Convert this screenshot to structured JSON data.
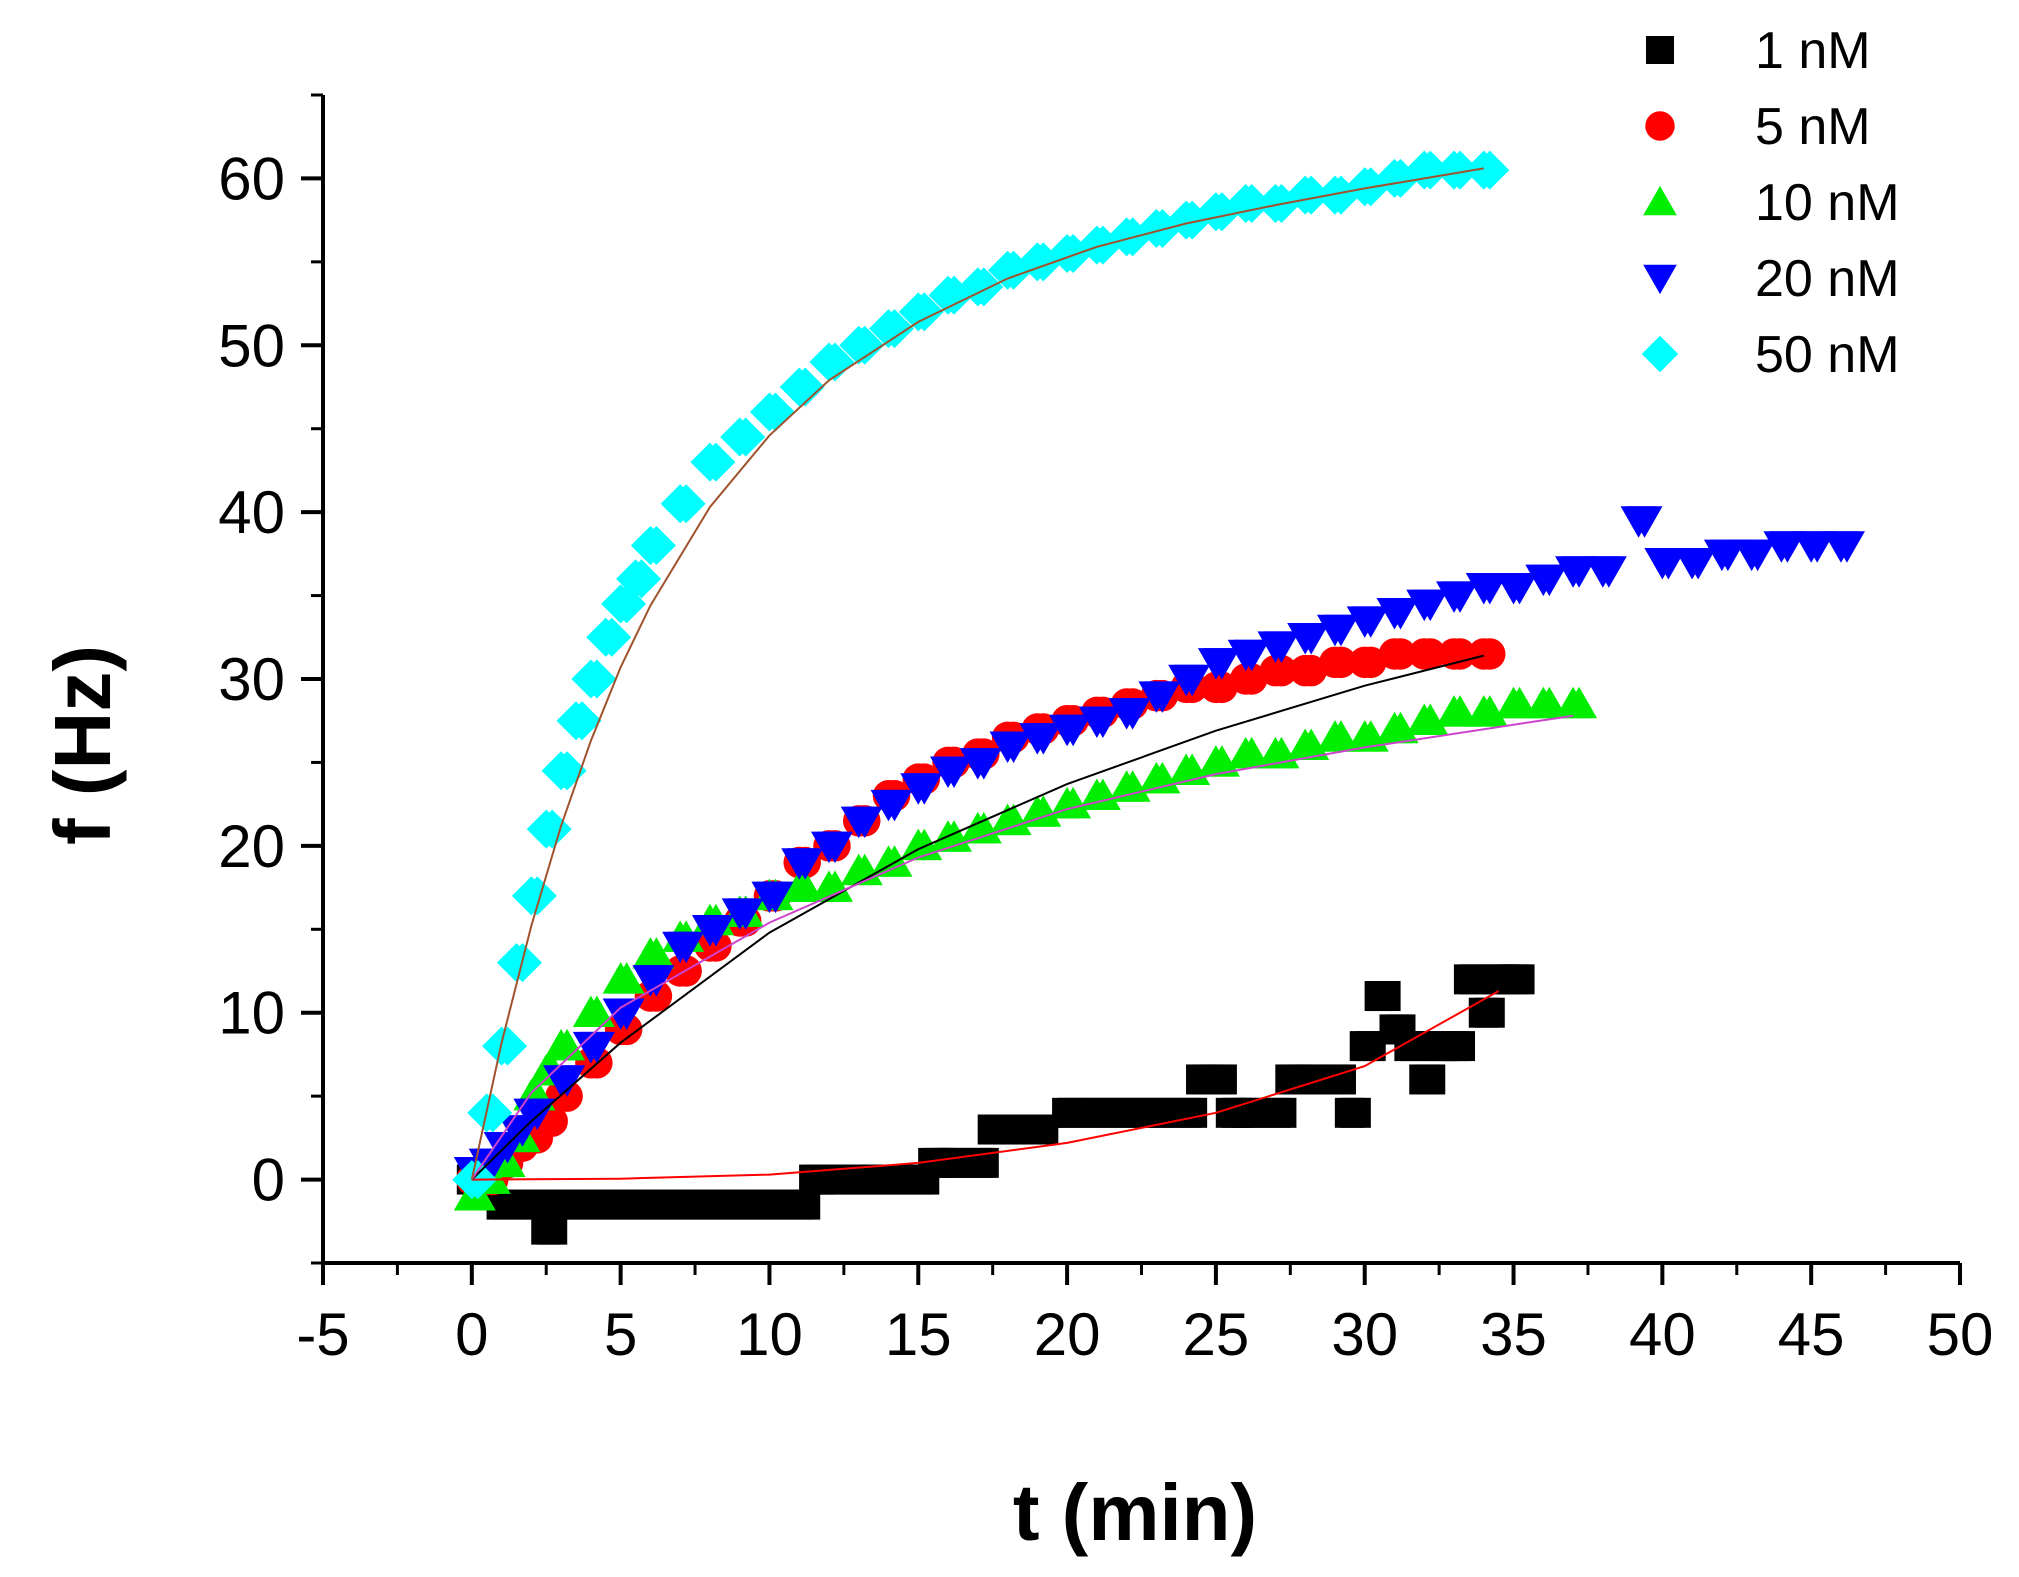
{
  "chart_data": {
    "type": "scatter",
    "title": "",
    "xlabel": "t (min)",
    "ylabel": "f (Hz)",
    "xlim": [
      -5,
      50
    ],
    "ylim": [
      -5,
      65
    ],
    "xticks": [
      -5,
      0,
      5,
      10,
      15,
      20,
      25,
      30,
      35,
      40,
      45,
      50
    ],
    "yticks": [
      0,
      10,
      20,
      30,
      40,
      50,
      60
    ],
    "legend_position": "top-right",
    "series": [
      {
        "name": "1 nM",
        "marker": "square",
        "color": "#000000",
        "fit_color": "#ff0000",
        "x": [
          0,
          1,
          2,
          2.5,
          3,
          4,
          5,
          6,
          7,
          8,
          9,
          10,
          11,
          11.5,
          12,
          13,
          14,
          15,
          15.5,
          16,
          17,
          17.5,
          18,
          19,
          20,
          21,
          22,
          23,
          24,
          24.5,
          25,
          25.5,
          26,
          27,
          27.5,
          28,
          29,
          29.5,
          30,
          30.5,
          31,
          31.5,
          32,
          32.5,
          33,
          33.5,
          34,
          34.5,
          35
        ],
        "y": [
          0,
          -1.5,
          -1.5,
          -3,
          -1.5,
          -1.5,
          -1.5,
          -1.5,
          -1.5,
          -1.5,
          -1.5,
          -1.5,
          -1.5,
          0,
          0,
          0,
          0,
          0,
          1,
          1,
          1,
          3,
          3,
          3,
          4,
          4,
          4,
          4,
          4,
          6,
          6,
          4,
          4,
          4,
          6,
          6,
          6,
          4,
          8,
          11,
          9,
          8,
          6,
          8,
          8,
          12,
          10,
          12,
          12
        ],
        "fit_x": [
          0,
          5,
          10,
          15,
          20,
          25,
          30,
          34.5
        ],
        "fit_y": [
          0,
          0.05,
          0.3,
          1.0,
          2.2,
          4.0,
          6.8,
          11.3
        ]
      },
      {
        "name": "5 nM",
        "marker": "circle",
        "color": "#ff0000",
        "fit_color": "#000000",
        "x": [
          0,
          0.5,
          1,
          1.5,
          2,
          2.5,
          3,
          4,
          5,
          6,
          7,
          8,
          9,
          10,
          11,
          12,
          13,
          14,
          15,
          16,
          17,
          18,
          19,
          20,
          21,
          22,
          23,
          24,
          25,
          26,
          27,
          28,
          29,
          30,
          31,
          32,
          33,
          34
        ],
        "y": [
          0,
          0,
          1,
          2,
          2.5,
          3.5,
          5,
          7,
          9,
          11,
          12.5,
          14,
          15.5,
          17,
          19,
          20,
          21.5,
          23,
          24,
          25,
          25.5,
          26.5,
          27,
          27.5,
          28,
          28.5,
          29,
          29.5,
          29.5,
          30,
          30.5,
          30.5,
          31,
          31,
          31.5,
          31.5,
          31.5,
          31.5
        ],
        "fit_x": [
          0,
          2,
          5,
          10,
          15,
          20,
          25,
          30,
          34
        ],
        "fit_y": [
          0,
          3.5,
          8.2,
          14.8,
          19.8,
          23.7,
          26.9,
          29.6,
          31.4
        ]
      },
      {
        "name": "10 nM",
        "marker": "triangle-up",
        "color": "#00ee00",
        "fit_color": "#cc44cc",
        "x": [
          0,
          0.5,
          1,
          1.5,
          2,
          2.5,
          3,
          4,
          5,
          6,
          7,
          8,
          9,
          10,
          11,
          12,
          13,
          14,
          15,
          16,
          17,
          18,
          19,
          20,
          21,
          22,
          23,
          24,
          25,
          26,
          27,
          28,
          29,
          30,
          31,
          32,
          33,
          34,
          35,
          36,
          37
        ],
        "y": [
          -1,
          0,
          1,
          2.5,
          5,
          6.5,
          8,
          10,
          12,
          13.5,
          14.5,
          15.5,
          16,
          17,
          17.5,
          17.5,
          18.5,
          19,
          20,
          20.5,
          21,
          21.5,
          22,
          22.5,
          23,
          23.5,
          24,
          24.5,
          25,
          25.5,
          25.5,
          26,
          26.5,
          26.5,
          27,
          27.5,
          28,
          28,
          28.5,
          28.5,
          28.5
        ],
        "fit_x": [
          0,
          2,
          5,
          10,
          15,
          20,
          25,
          30,
          37
        ],
        "fit_y": [
          0,
          5.2,
          10.3,
          15.4,
          19.3,
          22.2,
          24.3,
          25.9,
          27.8
        ]
      },
      {
        "name": "20 nM",
        "marker": "triangle-down",
        "color": "#0000ff",
        "fit_color": "#000000",
        "x": [
          0,
          0.5,
          1,
          1.5,
          2,
          3,
          4,
          5,
          6,
          7,
          8,
          9,
          10,
          11,
          12,
          13,
          14,
          15,
          16,
          17,
          18,
          19,
          20,
          21,
          22,
          23,
          24,
          25,
          26,
          27,
          28,
          29,
          30,
          31,
          32,
          33,
          34,
          35,
          36,
          37,
          38,
          39.2,
          40,
          41,
          42,
          43,
          44,
          45,
          46
        ],
        "y": [
          0.5,
          1,
          2,
          3,
          4,
          6,
          8,
          10,
          12,
          14,
          15,
          16,
          17,
          19,
          20,
          21.5,
          22.5,
          23.5,
          24.5,
          25,
          26,
          26.5,
          27,
          27.5,
          28,
          29,
          30,
          31,
          31.5,
          32,
          32.5,
          33,
          33.5,
          34,
          34.5,
          35,
          35.5,
          35.5,
          36,
          36.5,
          36.5,
          39.5,
          37,
          37,
          37.5,
          37.5,
          38,
          38,
          38
        ],
        "fit_x": [],
        "fit_y": []
      },
      {
        "name": "50 nM",
        "marker": "diamond",
        "color": "#00ffff",
        "fit_color": "#a0522d",
        "x": [
          0,
          0.5,
          1,
          1.5,
          2,
          2.5,
          3,
          3.5,
          4,
          4.5,
          5,
          5.5,
          6,
          7,
          8,
          9,
          10,
          11,
          12,
          13,
          14,
          15,
          16,
          17,
          18,
          19,
          20,
          21,
          22,
          23,
          24,
          25,
          26,
          27,
          28,
          29,
          30,
          31,
          32,
          33,
          34
        ],
        "y": [
          0,
          4,
          8,
          13,
          17,
          21,
          24.5,
          27.5,
          30,
          32.5,
          34.5,
          36,
          38,
          40.5,
          43,
          44.5,
          46,
          47.5,
          49,
          50,
          51,
          52,
          53,
          53.5,
          54.5,
          55,
          55.5,
          56,
          56.5,
          57,
          57.5,
          58,
          58.5,
          58.5,
          59,
          59,
          59.5,
          60,
          60.5,
          60.5,
          60.5
        ],
        "fit_x": [
          0,
          1,
          2,
          3,
          4,
          5,
          6,
          8,
          10,
          12,
          15,
          18,
          21,
          24,
          27,
          30,
          34
        ],
        "fit_y": [
          0,
          8.2,
          15.2,
          21.2,
          26.3,
          30.7,
          34.4,
          40.3,
          44.6,
          47.9,
          51.4,
          54.0,
          55.9,
          57.3,
          58.4,
          59.4,
          60.6
        ]
      }
    ]
  }
}
